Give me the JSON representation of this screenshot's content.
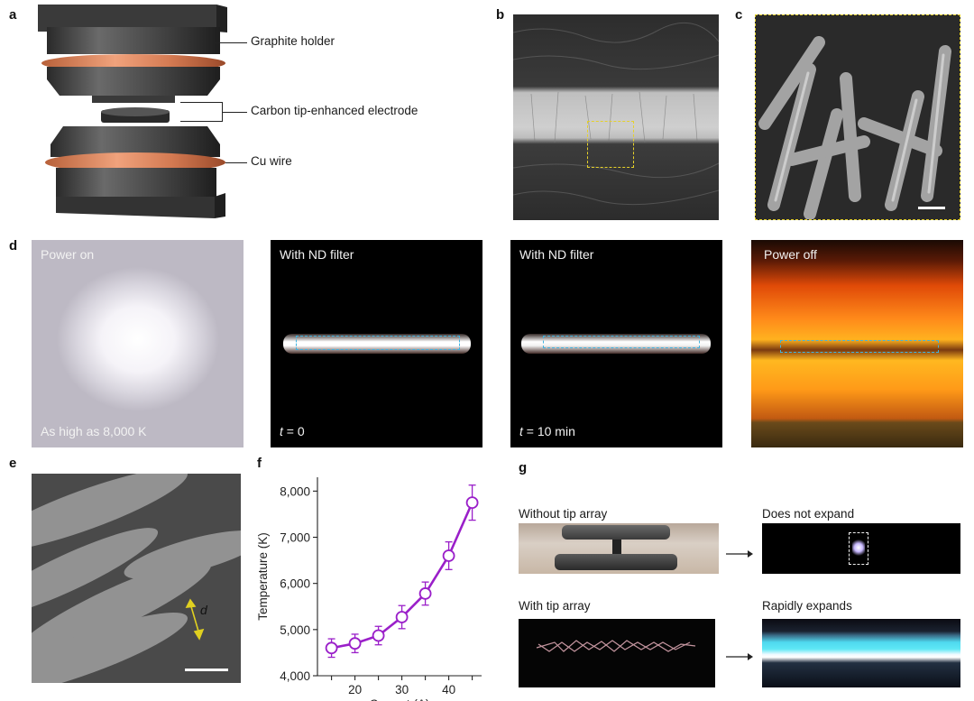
{
  "panels": {
    "a": {
      "letter": "a",
      "labels": {
        "holder": "Graphite holder",
        "electrode": "Carbon tip-enhanced  electrode",
        "wire": "Cu wire"
      }
    },
    "b": {
      "letter": "b"
    },
    "c": {
      "letter": "c"
    },
    "d": {
      "letter": "d",
      "frames": [
        {
          "top": "Power on",
          "bottom": "As high as 8,000 K"
        },
        {
          "top": "With ND filter",
          "bottom_var": "t",
          "bottom_rest": " = 0"
        },
        {
          "top": "With ND filter",
          "bottom_var": "t",
          "bottom_rest": " = 10 min"
        },
        {
          "top": "Power off"
        }
      ]
    },
    "e": {
      "letter": "e",
      "dim_label": "d"
    },
    "f": {
      "letter": "f"
    },
    "g": {
      "letter": "g",
      "labels": {
        "without_tip": "Without tip array",
        "with_tip": "With tip array",
        "no_expand": "Does not expand",
        "expands": "Rapidly expands"
      }
    }
  },
  "chart_data": {
    "type": "line",
    "xlabel": "Current (A)",
    "ylabel": "Temperature (K)",
    "x": [
      15,
      20,
      25,
      30,
      35,
      40,
      45
    ],
    "series": [
      {
        "values": [
          4600,
          4700,
          4870,
          5270,
          5780,
          6600,
          7750
        ],
        "errors": [
          200,
          200,
          200,
          250,
          250,
          300,
          380
        ]
      }
    ],
    "xlim": [
      12,
      47
    ],
    "ylim": [
      4000,
      8300
    ],
    "xticks": [
      15,
      20,
      25,
      30,
      35,
      40,
      45
    ],
    "xtick_labels": [
      "",
      "20",
      "",
      "30",
      "",
      "40",
      ""
    ],
    "yticks": [
      4000,
      5000,
      6000,
      7000,
      8000
    ],
    "ytick_labels": [
      "4,000",
      "5,000",
      "6,000",
      "7,000",
      "8,000"
    ],
    "color": "#9a1fc9",
    "grid": false
  }
}
